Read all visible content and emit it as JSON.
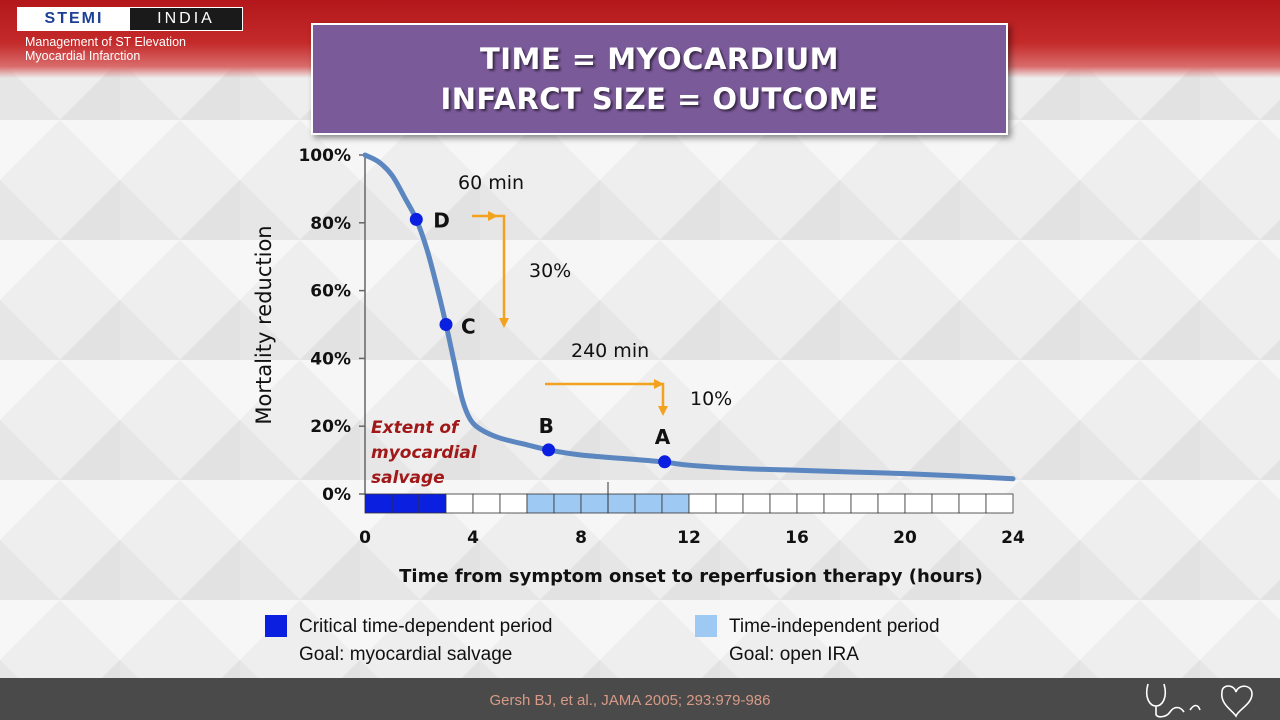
{
  "header": {
    "logo_left": "STEMI",
    "logo_right": "INDIA",
    "subtitle_line1": "Management of ST Elevation",
    "subtitle_line2": "Myocardial Infarction"
  },
  "title": {
    "line1": "TIME = MYOCARDIUM",
    "line2": "INFARCT SIZE = OUTCOME"
  },
  "chart_data": {
    "type": "line",
    "xlabel": "Time from symptom onset to reperfusion therapy (hours)",
    "ylabel": "Mortality reduction",
    "xlim": [
      0,
      24
    ],
    "ylim": [
      0,
      100
    ],
    "x_ticks": [
      "0",
      "4",
      "8",
      "12",
      "16",
      "20",
      "24"
    ],
    "x_tick_values": [
      0,
      4,
      8,
      12,
      16,
      20,
      24
    ],
    "y_ticks": [
      "0%",
      "20%",
      "40%",
      "60%",
      "80%",
      "100%"
    ],
    "y_tick_values": [
      0,
      20,
      40,
      60,
      80,
      100
    ],
    "curve": [
      [
        0,
        100
      ],
      [
        0.5,
        98
      ],
      [
        1,
        94
      ],
      [
        1.5,
        87
      ],
      [
        1.9,
        81
      ],
      [
        2.3,
        72
      ],
      [
        2.7,
        60
      ],
      [
        3,
        50
      ],
      [
        3.3,
        39
      ],
      [
        3.6,
        28
      ],
      [
        3.9,
        22
      ],
      [
        4.3,
        19
      ],
      [
        5,
        16.5
      ],
      [
        6,
        14.5
      ],
      [
        6.8,
        13
      ],
      [
        8,
        11.5
      ],
      [
        9.5,
        10.5
      ],
      [
        11,
        9.5
      ],
      [
        12,
        8.5
      ],
      [
        14,
        7.5
      ],
      [
        16,
        7
      ],
      [
        18,
        6.5
      ],
      [
        20,
        6
      ],
      [
        22,
        5.3
      ],
      [
        24,
        4.5
      ]
    ],
    "points": [
      {
        "label": "D",
        "x": 1.9,
        "y": 81
      },
      {
        "label": "C",
        "x": 3.0,
        "y": 50
      },
      {
        "label": "B",
        "x": 6.8,
        "y": 13
      },
      {
        "label": "A",
        "x": 11.1,
        "y": 9.5
      }
    ],
    "annotations": {
      "arrow1_time": "60 min",
      "arrow1_drop": "30%",
      "arrow2_time": "240 min",
      "arrow2_drop": "10%",
      "salvage_line1": "Extent of",
      "salvage_line2": "myocardial",
      "salvage_line3": "salvage"
    },
    "timeline": {
      "critical_period_hours": [
        0,
        2.5
      ],
      "independent_period_hours": [
        6,
        12
      ]
    },
    "colors": {
      "curve": "#5b86c0",
      "points": "#0a1fe0",
      "arrows": "#f2a21f",
      "critical": "#0a1fe0",
      "independent": "#9ec9f3"
    }
  },
  "legend": {
    "critical_label": "Critical time-dependent period",
    "critical_goal": "Goal: myocardial salvage",
    "independent_label": "Time-independent period",
    "independent_goal": "Goal: open IRA"
  },
  "footer": {
    "citation": "Gersh BJ, et al., JAMA 2005; 293:979-986"
  }
}
